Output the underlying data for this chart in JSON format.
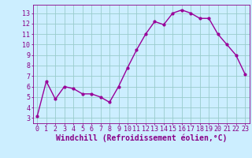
{
  "x": [
    0,
    1,
    2,
    3,
    4,
    5,
    6,
    7,
    8,
    9,
    10,
    11,
    12,
    13,
    14,
    15,
    16,
    17,
    18,
    19,
    20,
    21,
    22,
    23
  ],
  "y": [
    3.2,
    6.5,
    4.8,
    6.0,
    5.8,
    5.3,
    5.3,
    5.0,
    4.5,
    6.0,
    7.8,
    9.5,
    11.0,
    12.2,
    11.9,
    13.0,
    13.3,
    13.0,
    12.5,
    12.5,
    11.0,
    10.0,
    9.0,
    7.2
  ],
  "line_color": "#990099",
  "marker": "o",
  "marker_size": 2.0,
  "bg_color": "#cceeff",
  "grid_color": "#99cccc",
  "xlabel": "Windchill (Refroidissement éolien,°C)",
  "xlabel_color": "#880088",
  "ylabel_ticks": [
    3,
    4,
    5,
    6,
    7,
    8,
    9,
    10,
    11,
    12,
    13
  ],
  "ylim": [
    2.5,
    13.8
  ],
  "xlim": [
    -0.5,
    23.5
  ],
  "tick_color": "#880088",
  "tick_fontsize": 6.0,
  "xlabel_fontsize": 7.0,
  "linewidth": 1.0
}
